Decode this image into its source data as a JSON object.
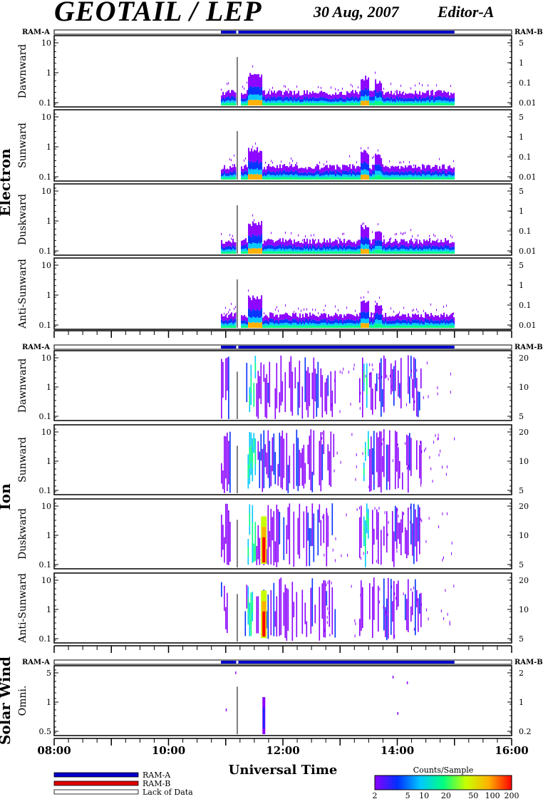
{
  "header": {
    "title": "GEOTAIL / LEP",
    "date": "30 Aug, 2007",
    "editor": "Editor-A"
  },
  "ram_labels": {
    "left": "RAM-A",
    "right": "RAM-B"
  },
  "groups": [
    {
      "label": "Electron",
      "panels": [
        "Dawnward",
        "Sunward",
        "Duskward",
        "Anti-Sunward"
      ],
      "left_ticks": [
        "10",
        "1",
        "0.1"
      ],
      "right_ticks": [
        "5",
        "1",
        "0.1",
        "0.01"
      ]
    },
    {
      "label": "Ion",
      "panels": [
        "Dawnward",
        "Sunward",
        "Duskward",
        "Anti-Sunward"
      ],
      "left_ticks": [
        "10",
        "1",
        "0.1"
      ],
      "right_ticks": [
        "20",
        "10",
        "5"
      ]
    },
    {
      "label": "Solar Wind",
      "panels": [
        "Omni."
      ],
      "left_ticks": [
        "5",
        "1",
        "0.5"
      ],
      "right_ticks": [
        "2",
        "1",
        "0.2"
      ]
    }
  ],
  "chart_data": {
    "type": "heatmap",
    "x_range": [
      "08:00",
      "16:00"
    ],
    "x_tick_labels": [
      "08:00",
      "10:00",
      "12:00",
      "14:00",
      "16:00"
    ],
    "xlabel": "Universal Time",
    "data_coverage": {
      "start": "10:55",
      "end": "15:00",
      "gaps": [
        "11:11",
        "11:14"
      ]
    },
    "features": [
      {
        "group": "Electron",
        "time": "11:30",
        "note": "enhancement"
      },
      {
        "group": "Electron",
        "time": "13:25",
        "note": "enhancement"
      },
      {
        "group": "Electron",
        "time": "13:40",
        "note": "enhancement"
      },
      {
        "group": "Ion",
        "time": "11:40",
        "note": "intense burst (red) in Duskward / Anti-Sunward"
      },
      {
        "group": "Solar Wind",
        "time": "11:40",
        "note": "burst"
      }
    ],
    "colorbar": {
      "title": "Counts/Sample",
      "ticks": [
        "2",
        "5",
        "10",
        "20",
        "50",
        "100",
        "200"
      ],
      "colors": [
        "#8a00ff",
        "#0030ff",
        "#00c8ff",
        "#00ff80",
        "#c8ff00",
        "#ffb000",
        "#ff0000"
      ]
    }
  },
  "legend": [
    {
      "label": "RAM-A",
      "color": "#0000c8"
    },
    {
      "label": "RAM-B",
      "color": "#e00000"
    },
    {
      "label": "Lack of Data",
      "color": "#ffffff"
    }
  ]
}
